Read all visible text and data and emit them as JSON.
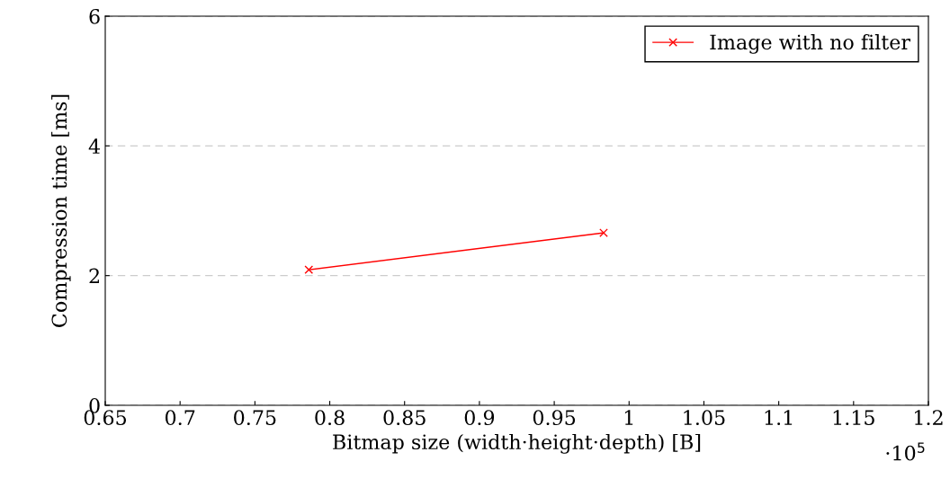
{
  "chart_data": {
    "type": "line",
    "xlabel": "Bitmap size (width·height·depth) [B]",
    "ylabel": "Compression time [ms]",
    "annotations": [
      "·10$^{5}$"
    ],
    "series": [
      {
        "name": "Image with no filter",
        "color": "#ff0000",
        "x": [
          0.786,
          0.983
        ],
        "values": [
          2.09,
          2.66
        ]
      }
    ],
    "xlim": [
      0.65,
      1.2
    ],
    "xticks": [
      0.65,
      0.7,
      0.75,
      0.8,
      0.85,
      0.9,
      0.95,
      1,
      1.05,
      1.1,
      1.15,
      1.2
    ],
    "ylim": [
      0,
      6
    ],
    "yticks": [
      0,
      2,
      4,
      6
    ],
    "grid": "y",
    "legend": "top right",
    "marker": "cross",
    "line_style": "solid"
  }
}
